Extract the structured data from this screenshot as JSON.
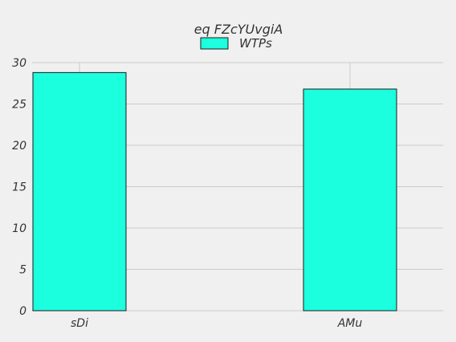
{
  "chart_data": {
    "type": "bar",
    "title": "eq FZcYUvgiA",
    "categories": [
      "sDi",
      "AMu"
    ],
    "series": [
      {
        "name": "WTPs",
        "values": [
          28.8,
          26.8
        ]
      }
    ],
    "ylim": [
      0,
      30
    ],
    "yticks": [
      "0",
      "5",
      "10",
      "15",
      "20",
      "25",
      "30"
    ],
    "xlabel": "",
    "ylabel": "",
    "grid": true,
    "legend_position": "top-center"
  },
  "colors": {
    "background": "#f0f0f0",
    "bar_fill": "#1cffdf",
    "bar_edge": "#1a1a1a",
    "grid": "#cbcbcb",
    "text": "#333333"
  }
}
